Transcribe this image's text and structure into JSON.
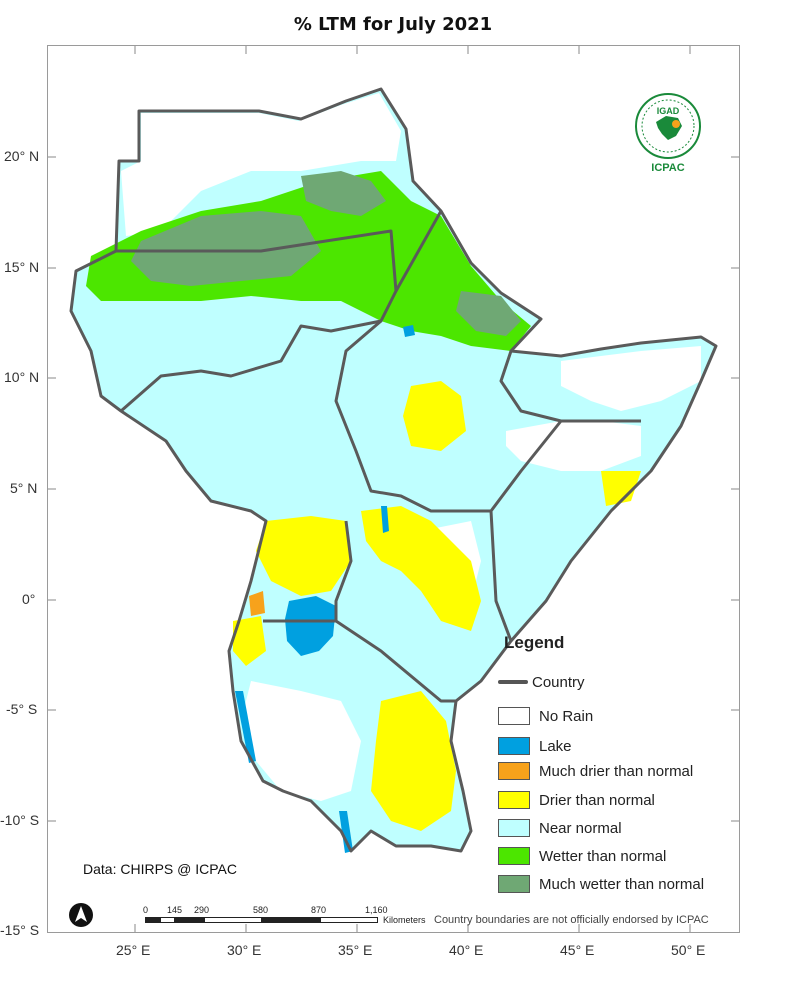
{
  "title": "% LTM for  July 2021",
  "lat_labels": [
    "20° N",
    "15° N",
    "10° N",
    "5° N",
    "0°",
    "-5° S",
    "-10° S",
    "-15° S"
  ],
  "lon_labels": [
    "25° E",
    "30° E",
    "35° E",
    "40° E",
    "45° E",
    "50° E"
  ],
  "legend": {
    "title": "Legend",
    "items": [
      {
        "label": "Country",
        "kind": "line",
        "color": "#555555"
      },
      {
        "label": "No Rain",
        "kind": "fill",
        "color": "#ffffff"
      },
      {
        "label": "Lake",
        "kind": "fill",
        "color": "#00a0e0"
      },
      {
        "label": "Much drier than normal",
        "kind": "fill",
        "color": "#f7a21b"
      },
      {
        "label": "Drier than normal",
        "kind": "fill",
        "color": "#ffff00"
      },
      {
        "label": "Near normal",
        "kind": "fill",
        "color": "#bfffff"
      },
      {
        "label": "Wetter than normal",
        "kind": "fill",
        "color": "#4ce600"
      },
      {
        "label": "Much wetter than normal",
        "kind": "fill",
        "color": "#6fa874"
      }
    ]
  },
  "data_source": "Data: CHIRPS @ ICPAC",
  "disclaimer": "Country boundaries are not officially endorsed by ICPAC",
  "scalebar": {
    "ticks": [
      "0",
      "145",
      "290",
      "580",
      "870",
      "1,160"
    ],
    "unit": "Kilometers"
  },
  "logo": {
    "name": "IGAD",
    "sub": "ICPAC"
  },
  "colors": {
    "boundary": "#5a5a5a",
    "near_normal": "#bfffff",
    "wetter": "#4ce600",
    "much_wetter": "#6fa874",
    "drier": "#ffff00",
    "much_drier": "#f7a21b",
    "lake": "#00a0e0"
  }
}
